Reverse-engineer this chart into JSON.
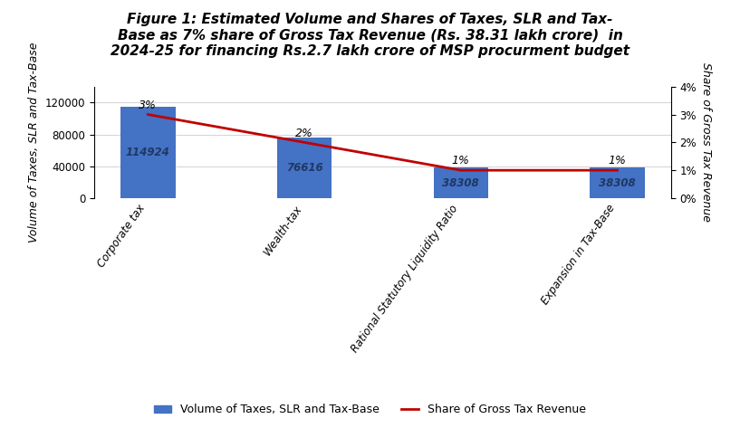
{
  "title": "Figure 1: Estimated Volume and Shares of Taxes, SLR and Tax-\nBase as 7% share of Gross Tax Revenue (Rs. 38.31 lakh crore)  in\n2024-25 for financing Rs.2.7 lakh crore of MSP procurment budget",
  "categories": [
    "Corporate tax",
    "Wealth-tax",
    "Rational Statutory Liquidity Ratio",
    "Expansion in Tax-Base"
  ],
  "bar_values": [
    114924,
    76616,
    38308,
    38308
  ],
  "bar_labels": [
    "114924",
    "76616",
    "38308",
    "38308"
  ],
  "line_values": [
    3,
    2,
    1,
    1
  ],
  "line_labels": [
    "3%",
    "2%",
    "1%",
    "1%"
  ],
  "bar_color": "#4472C4",
  "line_color": "#C00000",
  "ylabel_left": "Volume of Taxes, SLR and Tax-Base",
  "ylabel_right": "Share of Gross Tax Revenue",
  "ylim_left": [
    0,
    140000
  ],
  "ylim_right": [
    0,
    4
  ],
  "yticks_left": [
    0,
    40000,
    80000,
    120000
  ],
  "yticks_right": [
    0,
    1,
    2,
    3,
    4
  ],
  "ytick_labels_right": [
    "0%",
    "1%",
    "2%",
    "3%",
    "4%"
  ],
  "legend_bar_label": "Volume of Taxes, SLR and Tax-Base",
  "legend_line_label": "Share of Gross Tax Revenue",
  "background_color": "#FFFFFF",
  "title_fontsize": 11,
  "axis_label_fontsize": 9,
  "bar_label_fontsize": 8.5,
  "line_label_fontsize": 9,
  "bar_label_color": "#1F3864",
  "bar_width": 0.35
}
